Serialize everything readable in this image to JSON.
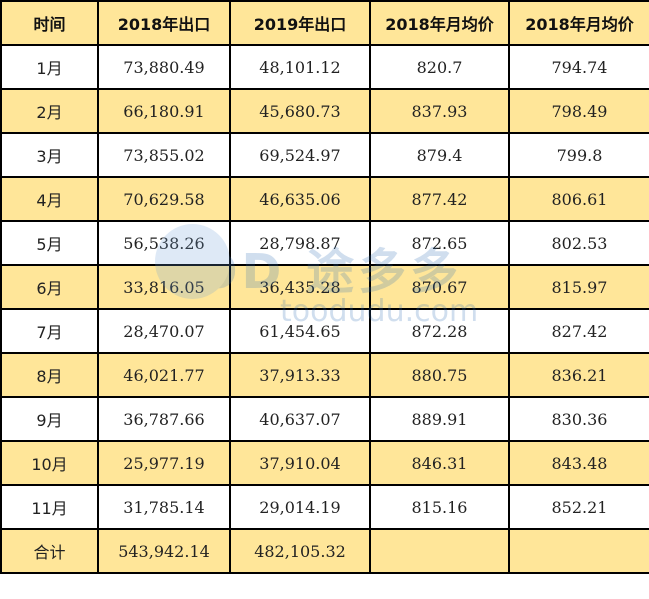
{
  "table": {
    "headers": [
      "时间",
      "2018年出口",
      "2019年出口",
      "2018年月均价",
      "2018年月均价"
    ],
    "rows": [
      [
        "1月",
        "73,880.49",
        "48,101.12",
        "820.7",
        "794.74"
      ],
      [
        "2月",
        "66,180.91",
        "45,680.73",
        "837.93",
        "798.49"
      ],
      [
        "3月",
        "73,855.02",
        "69,524.97",
        "879.4",
        "799.8"
      ],
      [
        "4月",
        "70,629.58",
        "46,635.06",
        "877.42",
        "806.61"
      ],
      [
        "5月",
        "56,538.26",
        "28,798.87",
        "872.65",
        "802.53"
      ],
      [
        "6月",
        "33,816.05",
        "36,435.28",
        "870.67",
        "815.97"
      ],
      [
        "7月",
        "28,470.07",
        "61,454.65",
        "872.28",
        "827.42"
      ],
      [
        "8月",
        "46,021.77",
        "37,913.33",
        "880.75",
        "836.21"
      ],
      [
        "9月",
        "36,787.66",
        "40,637.07",
        "889.91",
        "830.36"
      ],
      [
        "10月",
        "25,977.19",
        "37,910.04",
        "846.31",
        "843.48"
      ],
      [
        "11月",
        "31,785.14",
        "29,014.19",
        "815.16",
        "852.21"
      ],
      [
        "合计",
        "543,942.14",
        "482,105.32",
        "",
        ""
      ]
    ]
  },
  "watermark": {
    "brand": "TOD 途多多",
    "url": "toodudu.com"
  },
  "colors": {
    "highlight_row": "#FFE699",
    "border": "#000000"
  }
}
